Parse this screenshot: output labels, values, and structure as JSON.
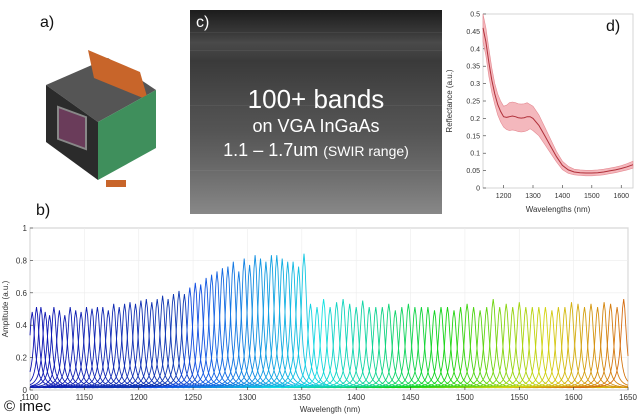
{
  "panels": {
    "a": "a)",
    "b": "b)",
    "c": "c)",
    "d": "d)"
  },
  "sensor_image": {
    "line1": "100+ bands",
    "line2": "on VGA InGaAs",
    "line3_main": "1.1 – 1.7um",
    "line3_sub": "(SWIR range)"
  },
  "copyright": "© imec",
  "colors": {
    "camera_body": "#2b2b2b",
    "camera_copper": "#c8652a",
    "camera_pcb": "#3f8f5c",
    "reflectance_line": "#b0303a",
    "reflectance_band": "#f4b8bd"
  },
  "chart_data": [
    {
      "id": "reflectance",
      "type": "line",
      "title": "",
      "xlabel": "Wavelengths (nm)",
      "ylabel": "Reflectance (a.u.)",
      "xlim": [
        1130,
        1640
      ],
      "ylim": [
        0,
        0.5
      ],
      "xticks": [
        1200,
        1300,
        1400,
        1500,
        1600
      ],
      "yticks": [
        0,
        0.05,
        0.1,
        0.15,
        0.2,
        0.25,
        0.3,
        0.35,
        0.4,
        0.45,
        0.5
      ],
      "ytick_labels": [
        "0",
        "0.05",
        "0.1",
        "0.15",
        "0.2",
        "0.25",
        "0.3",
        "0.35",
        "0.4",
        "0.45",
        "0.5"
      ],
      "series": [
        {
          "name": "mean reflectance",
          "x": [
            1130,
            1140,
            1150,
            1160,
            1170,
            1180,
            1190,
            1200,
            1210,
            1220,
            1230,
            1240,
            1250,
            1260,
            1270,
            1280,
            1290,
            1300,
            1320,
            1340,
            1360,
            1380,
            1400,
            1420,
            1440,
            1460,
            1480,
            1500,
            1520,
            1540,
            1560,
            1580,
            1600,
            1620,
            1640
          ],
          "y": [
            0.46,
            0.42,
            0.36,
            0.31,
            0.27,
            0.24,
            0.22,
            0.205,
            0.203,
            0.205,
            0.207,
            0.205,
            0.202,
            0.201,
            0.202,
            0.205,
            0.205,
            0.2,
            0.18,
            0.15,
            0.12,
            0.09,
            0.065,
            0.052,
            0.046,
            0.044,
            0.043,
            0.043,
            0.044,
            0.046,
            0.049,
            0.052,
            0.056,
            0.061,
            0.067
          ],
          "spread": [
            0.04,
            0.04,
            0.04,
            0.035,
            0.03,
            0.03,
            0.03,
            0.03,
            0.035,
            0.04,
            0.04,
            0.04,
            0.04,
            0.04,
            0.04,
            0.04,
            0.035,
            0.035,
            0.03,
            0.025,
            0.02,
            0.015,
            0.012,
            0.01,
            0.008,
            0.008,
            0.008,
            0.008,
            0.008,
            0.008,
            0.008,
            0.008,
            0.008,
            0.009,
            0.01
          ]
        }
      ]
    },
    {
      "id": "filter_spectra",
      "type": "line",
      "title": "",
      "xlabel": "Wavelength (nm)",
      "ylabel": "Amplitude (a.u.)",
      "xlim": [
        1100,
        1650
      ],
      "ylim": [
        0,
        1
      ],
      "xticks": [
        1100,
        1150,
        1200,
        1250,
        1300,
        1350,
        1400,
        1450,
        1500,
        1550,
        1600,
        1650
      ],
      "yticks": [
        0,
        0.2,
        0.4,
        0.6,
        0.8,
        1
      ],
      "ytick_labels": [
        "0",
        "0.2",
        "0.4",
        "0.6",
        "0.8",
        "1"
      ],
      "band_centers_nm": [
        1102,
        1106,
        1110,
        1114,
        1118,
        1122,
        1127,
        1132,
        1137,
        1142,
        1147,
        1152,
        1157,
        1162,
        1167,
        1172,
        1177,
        1182,
        1187,
        1192,
        1197,
        1202,
        1207,
        1212,
        1217,
        1222,
        1227,
        1232,
        1237,
        1242,
        1247,
        1252,
        1257,
        1262,
        1267,
        1272,
        1277,
        1282,
        1287,
        1292,
        1297,
        1302,
        1307,
        1312,
        1317,
        1322,
        1327,
        1332,
        1337,
        1342,
        1347,
        1352,
        1358,
        1364,
        1370,
        1376,
        1382,
        1388,
        1394,
        1400,
        1406,
        1412,
        1418,
        1424,
        1430,
        1436,
        1442,
        1448,
        1454,
        1460,
        1466,
        1472,
        1478,
        1484,
        1490,
        1496,
        1502,
        1508,
        1514,
        1520,
        1526,
        1532,
        1538,
        1544,
        1550,
        1556,
        1562,
        1568,
        1574,
        1580,
        1586,
        1592,
        1598,
        1604,
        1610,
        1616,
        1622,
        1628,
        1634,
        1640,
        1646
      ],
      "band_peak_amplitudes": [
        0.47,
        0.5,
        0.5,
        0.47,
        0.45,
        0.5,
        0.48,
        0.45,
        0.5,
        0.48,
        0.47,
        0.5,
        0.49,
        0.5,
        0.5,
        0.48,
        0.52,
        0.5,
        0.52,
        0.53,
        0.52,
        0.54,
        0.55,
        0.53,
        0.55,
        0.57,
        0.55,
        0.58,
        0.6,
        0.58,
        0.62,
        0.65,
        0.64,
        0.68,
        0.7,
        0.72,
        0.74,
        0.75,
        0.78,
        0.72,
        0.8,
        0.76,
        0.82,
        0.8,
        0.78,
        0.82,
        0.82,
        0.8,
        0.78,
        0.78,
        0.75,
        0.83,
        0.52,
        0.5,
        0.55,
        0.5,
        0.53,
        0.55,
        0.52,
        0.5,
        0.54,
        0.5,
        0.5,
        0.5,
        0.52,
        0.48,
        0.5,
        0.52,
        0.5,
        0.5,
        0.5,
        0.48,
        0.5,
        0.5,
        0.48,
        0.5,
        0.52,
        0.5,
        0.48,
        0.5,
        0.55,
        0.5,
        0.52,
        0.5,
        0.53,
        0.5,
        0.5,
        0.5,
        0.5,
        0.48,
        0.5,
        0.5,
        0.53,
        0.52,
        0.5,
        0.52,
        0.5,
        0.53,
        0.52,
        0.5,
        0.55
      ],
      "band_fwhm_nm": 6
    }
  ]
}
